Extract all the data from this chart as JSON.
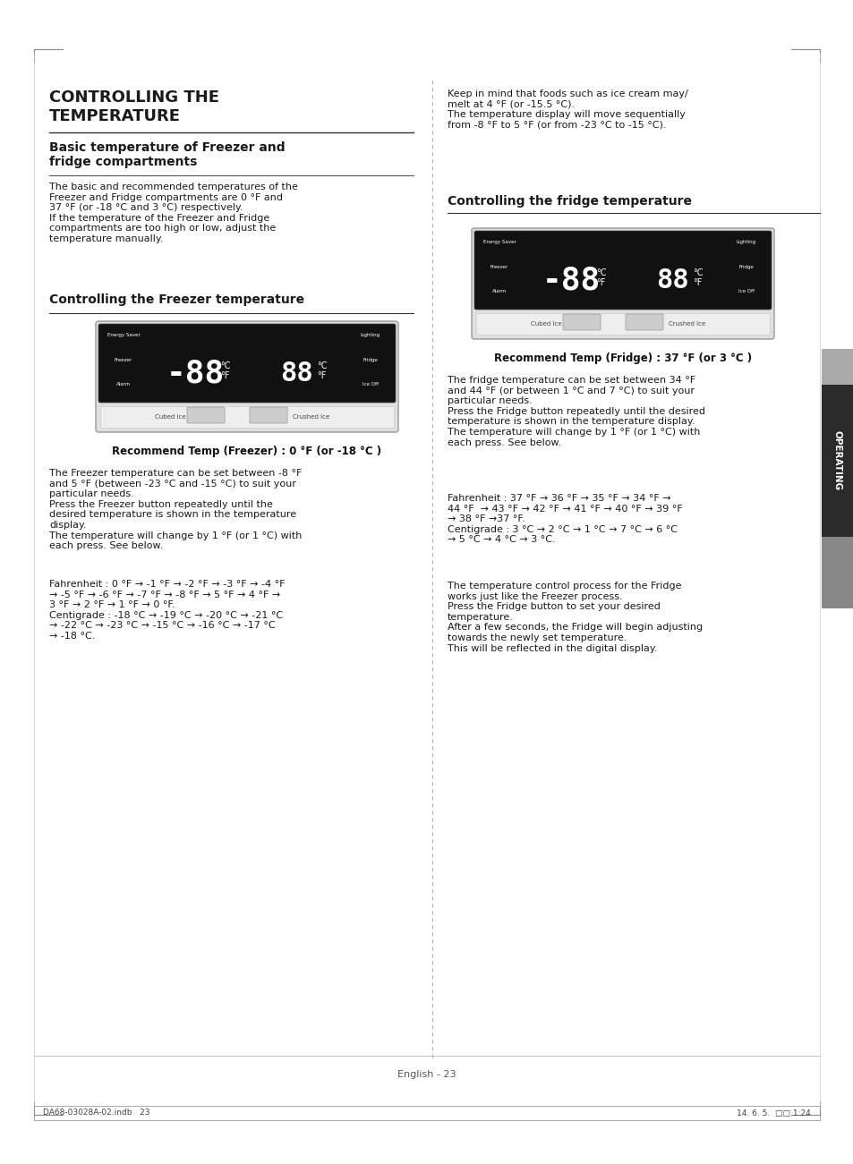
{
  "page_bg": "#ffffff",
  "title_main": "CONTROLLING THE\nTEMPERATURE",
  "subtitle1": "Basic temperature of Freezer and\nfridge compartments",
  "body1": "The basic and recommended temperatures of the\nFreezer and Fridge compartments are 0 °F and\n37 °F (or -18 °C and 3 °C) respectively.\nIf the temperature of the Freezer and Fridge\ncompartments are too high or low, adjust the\ntemperature manually.",
  "subtitle2": "Controlling the Freezer temperature",
  "freezer_caption": "Recommend Temp (Freezer) : 0 °F (or -18 °C )",
  "body2_1": "The Freezer temperature can be set between -8 °F\nand 5 °F (between -23 °C and -15 °C) to suit your\nparticular needs.\nPress the Freezer button repeatedly until the\ndesired temperature is shown in the temperature\ndisplay.\nThe temperature will change by 1 °F (or 1 °C) with\neach press. See below.",
  "body2_2": "Fahrenheit : 0 °F → -1 °F → -2 °F → -3 °F → -4 °F\n→ -5 °F → -6 °F → -7 °F → -8 °F → 5 °F → 4 °F →\n3 °F → 2 °F → 1 °F → 0 °F.\nCentigrade : -18 °C → -19 °C → -20 °C → -21 °C\n→ -22 °C → -23 °C → -15 °C → -16 °C → -17 °C\n→ -18 °C.",
  "right_top_text": "Keep in mind that foods such as ice cream may/\nmelt at 4 °F (or -15.5 °C).\nThe temperature display will move sequentially\nfrom -8 °F to 5 °F (or from -23 °C to -15 °C).",
  "subtitle3": "Controlling the fridge temperature",
  "fridge_caption": "Recommend Temp (Fridge) : 37 °F (or 3 °C )",
  "body3_1": "The fridge temperature can be set between 34 °F\nand 44 °F (or between 1 °C and 7 °C) to suit your\nparticular needs.\nPress the Fridge button repeatedly until the desired\ntemperature is shown in the temperature display.\nThe temperature will change by 1 °F (or 1 °C) with\neach press. See below.",
  "body3_2": "Fahrenheit : 37 °F → 36 °F → 35 °F → 34 °F →\n44 °F  → 43 °F → 42 °F → 41 °F → 40 °F → 39 °F\n→ 38 °F →37 °F.\nCentigrade : 3 °C → 2 °C → 1 °C → 7 °C → 6 °C\n→ 5 °C → 4 °C → 3 °C.",
  "body3_3": "The temperature control process for the Fridge\nworks just like the Freezer process.\nPress the Fridge button to set your desired\ntemperature.\nAfter a few seconds, the Fridge will begin adjusting\ntowards the newly set temperature.\nThis will be reflected in the digital display.",
  "operating_label": "OPERATING",
  "footer_center": "English - 23",
  "footer_left": "DA68-03028A-02.indb   23",
  "footer_right": "14. 6. 5.  □□ 1:24",
  "sidebar_dark": "#2a2a2a",
  "sidebar_mid": "#808080",
  "sidebar_light": "#b0b0b0"
}
